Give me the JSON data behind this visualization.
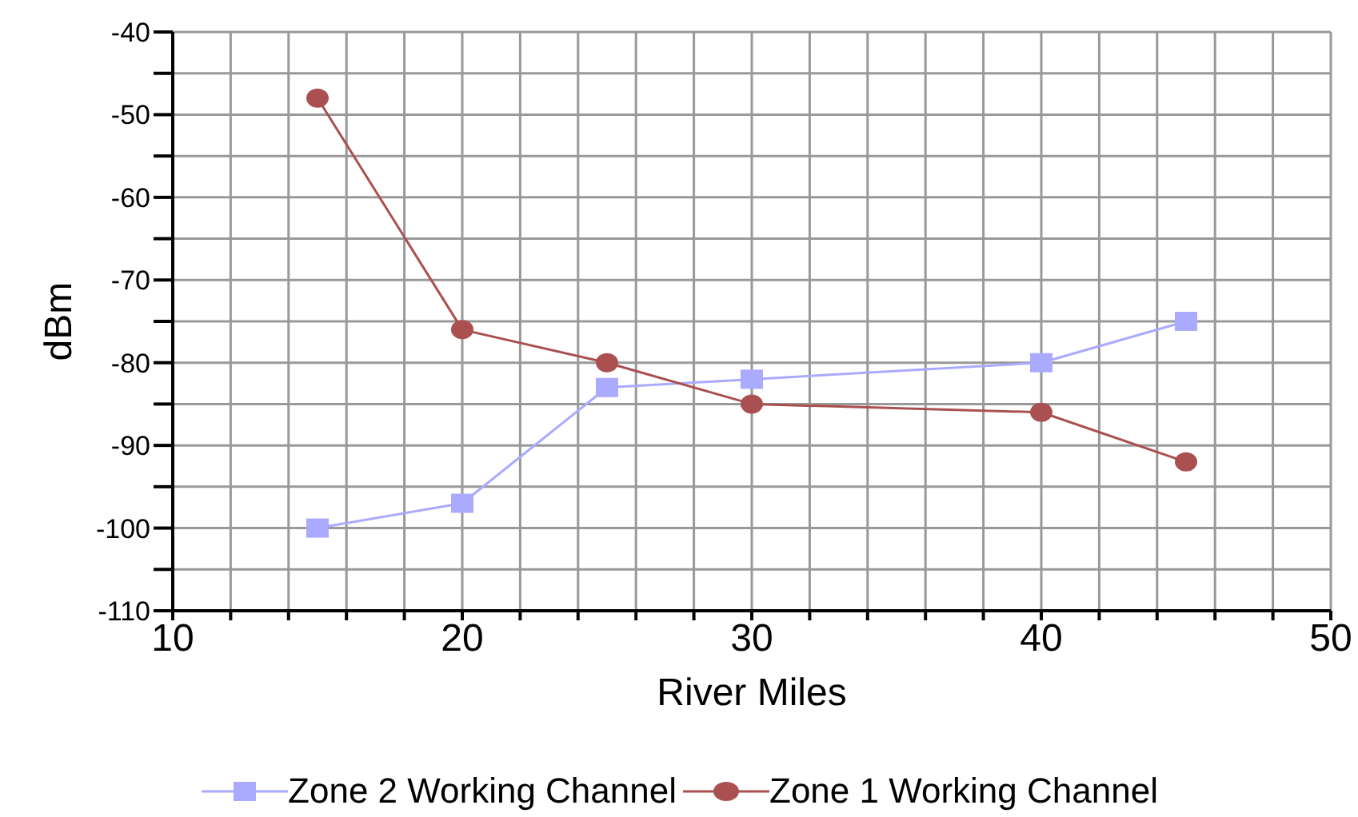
{
  "chart_data": {
    "type": "line",
    "xlabel": "River Miles",
    "ylabel": "dBm",
    "xlim": [
      10,
      50
    ],
    "xticks": [
      10,
      {
        "value": 12,
        "label": null
      },
      {
        "value": 14,
        "label": null
      },
      {
        "value": 16,
        "label": null
      },
      {
        "value": 18,
        "label": null
      },
      20,
      {
        "value": 22,
        "label": null
      },
      {
        "value": 24,
        "label": null
      },
      {
        "value": 26,
        "label": null
      },
      {
        "value": 28,
        "label": null
      },
      30,
      {
        "value": 32,
        "label": null
      },
      {
        "value": 34,
        "label": null
      },
      {
        "value": 36,
        "label": null
      },
      {
        "value": 38,
        "label": null
      },
      40,
      {
        "value": 42,
        "label": null
      },
      {
        "value": 44,
        "label": null
      },
      {
        "value": 46,
        "label": null
      },
      {
        "value": 48,
        "label": null
      },
      50
    ],
    "ylim": [
      -110,
      -40
    ],
    "yticks": [
      -110,
      {
        "value": -105,
        "label": null
      },
      -100,
      {
        "value": -95,
        "label": null
      },
      -90,
      {
        "value": -85,
        "label": null
      },
      -80,
      {
        "value": -75,
        "label": null
      },
      -70,
      {
        "value": -65,
        "label": null
      },
      -60,
      {
        "value": -55,
        "label": null
      },
      -50,
      {
        "value": -45,
        "label": null
      },
      -40
    ],
    "grid": true,
    "legend": "bottom",
    "series": [
      {
        "name": "Zone 2 Working Channel",
        "color": "#aaaaff",
        "marker": "square",
        "x": [
          15,
          20,
          25,
          30,
          40,
          45
        ],
        "values": [
          -100,
          -97,
          -83,
          -82,
          -80,
          -75
        ]
      },
      {
        "name": "Zone 1 Working Channel",
        "color": "#aa5050",
        "marker": "circle",
        "x": [
          15,
          20,
          25,
          30,
          40,
          45
        ],
        "values": [
          -48,
          -76,
          -80,
          -85,
          -86,
          -92
        ]
      }
    ]
  }
}
